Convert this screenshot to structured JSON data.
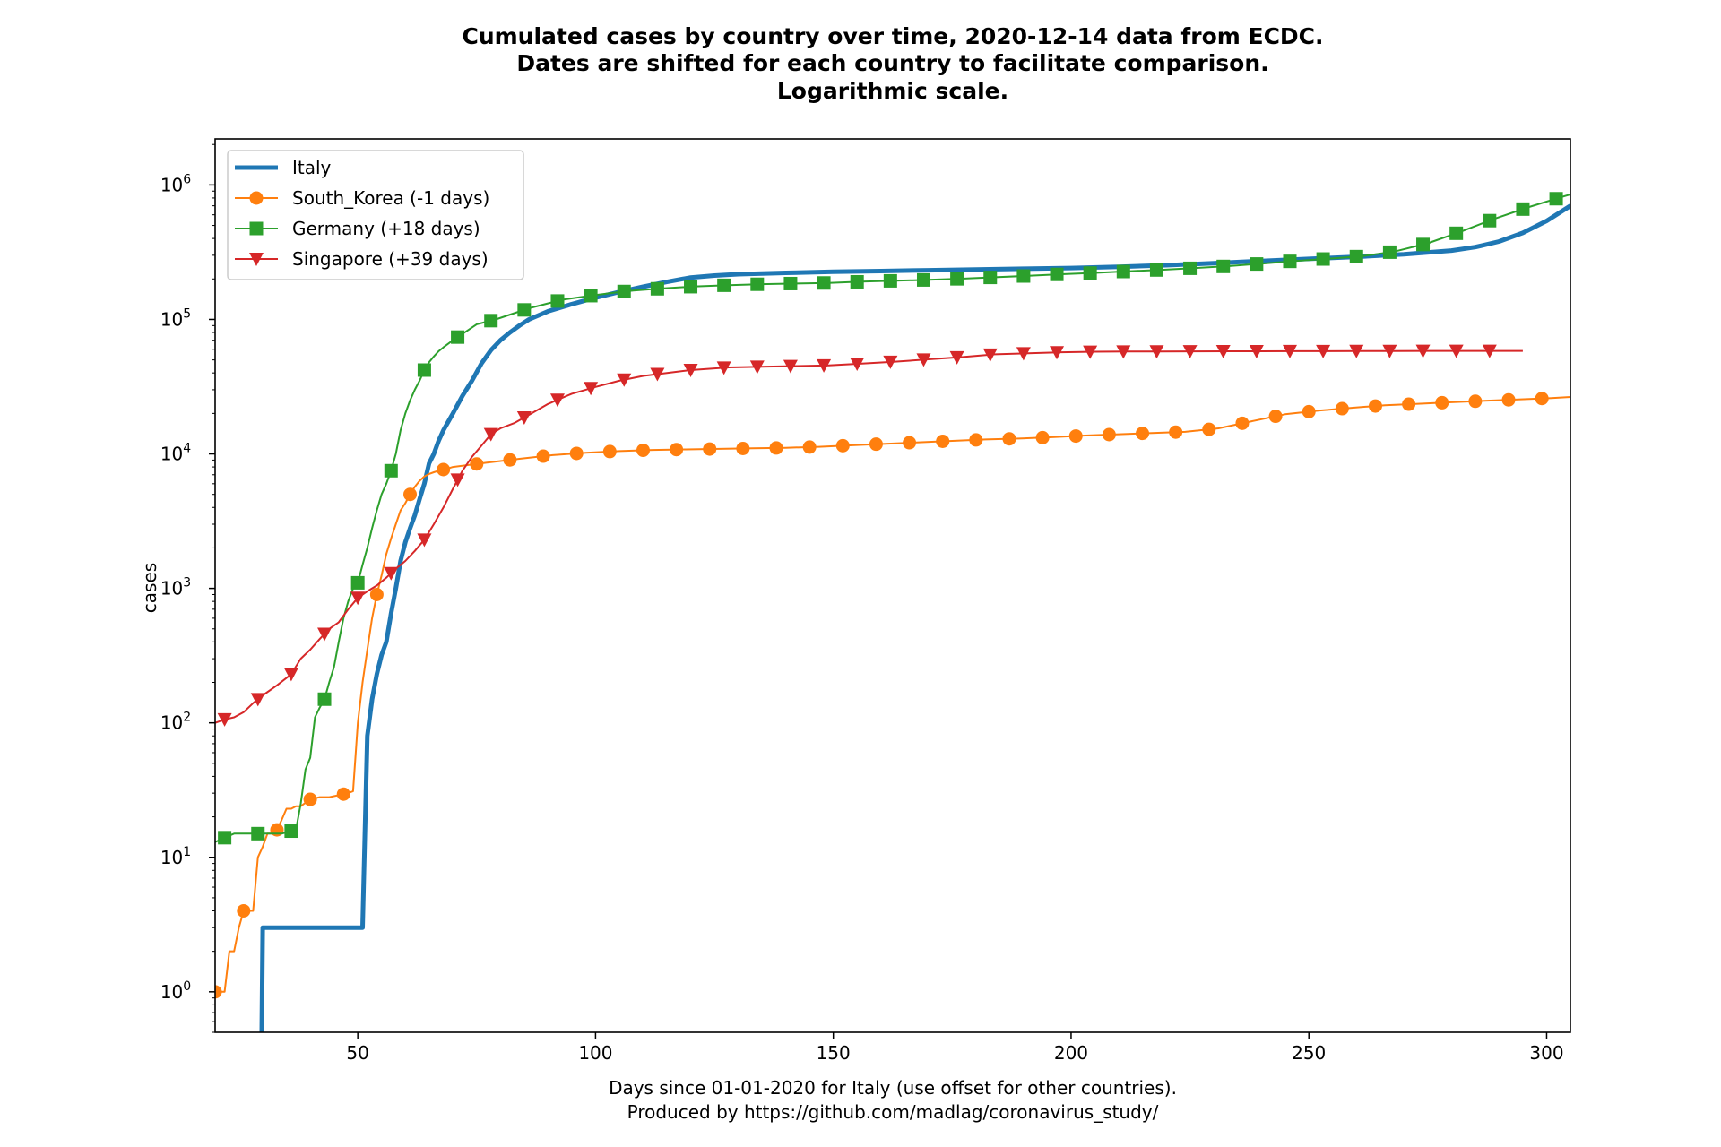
{
  "chart_data": {
    "type": "line",
    "title": [
      "Cumulated cases by country over time, 2020-12-14 data from ECDC.",
      "Dates are shifted for each country to facilitate comparison.",
      "Logarithmic scale."
    ],
    "xlabel": [
      "Days since 01-01-2020 for Italy (use offset for other countries).",
      "Produced by https://github.com/madlag/coronavirus_study/"
    ],
    "ylabel": "cases",
    "yscale": "log",
    "xlim": [
      20,
      305
    ],
    "ylim": [
      0.5,
      2200000
    ],
    "xticks": [
      50,
      100,
      150,
      200,
      250,
      300
    ],
    "yticks": [
      {
        "value": 1,
        "base": "10",
        "exp": "0"
      },
      {
        "value": 10,
        "base": "10",
        "exp": "1"
      },
      {
        "value": 100,
        "base": "10",
        "exp": "2"
      },
      {
        "value": 1000,
        "base": "10",
        "exp": "3"
      },
      {
        "value": 10000,
        "base": "10",
        "exp": "4"
      },
      {
        "value": 100000,
        "base": "10",
        "exp": "5"
      },
      {
        "value": 1000000,
        "base": "10",
        "exp": "6"
      }
    ],
    "grid": false,
    "legend_position": "top-left",
    "series": [
      {
        "name": "Italy",
        "color": "#1f77b4",
        "marker": "none",
        "line_width": 5,
        "points": [
          [
            29.8,
            0.5
          ],
          [
            30,
            3
          ],
          [
            50,
            3
          ],
          [
            51,
            3
          ],
          [
            52,
            80
          ],
          [
            53,
            150
          ],
          [
            54,
            230
          ],
          [
            55,
            320
          ],
          [
            56,
            400
          ],
          [
            57,
            650
          ],
          [
            58,
            1000
          ],
          [
            59,
            1600
          ],
          [
            60,
            2200
          ],
          [
            61,
            2800
          ],
          [
            62,
            3500
          ],
          [
            63,
            4600
          ],
          [
            64,
            6000
          ],
          [
            65,
            8500
          ],
          [
            66,
            10000
          ],
          [
            67,
            12500
          ],
          [
            68,
            15000
          ],
          [
            70,
            20000
          ],
          [
            72,
            27000
          ],
          [
            74,
            35000
          ],
          [
            76,
            47000
          ],
          [
            78,
            59000
          ],
          [
            80,
            70000
          ],
          [
            82,
            80000
          ],
          [
            84,
            90000
          ],
          [
            86,
            100000
          ],
          [
            90,
            115000
          ],
          [
            95,
            130000
          ],
          [
            100,
            145000
          ],
          [
            105,
            160000
          ],
          [
            110,
            175000
          ],
          [
            115,
            190000
          ],
          [
            120,
            205000
          ],
          [
            125,
            212000
          ],
          [
            130,
            217000
          ],
          [
            140,
            222000
          ],
          [
            150,
            226000
          ],
          [
            160,
            229000
          ],
          [
            170,
            232000
          ],
          [
            180,
            235000
          ],
          [
            190,
            238000
          ],
          [
            200,
            241000
          ],
          [
            210,
            246000
          ],
          [
            220,
            253000
          ],
          [
            230,
            262000
          ],
          [
            240,
            272000
          ],
          [
            250,
            282000
          ],
          [
            260,
            292000
          ],
          [
            270,
            305000
          ],
          [
            280,
            325000
          ],
          [
            285,
            345000
          ],
          [
            290,
            380000
          ],
          [
            295,
            440000
          ],
          [
            300,
            540000
          ],
          [
            305,
            700000
          ]
        ]
      },
      {
        "name": "South_Korea (-1 days)",
        "color": "#ff7f0e",
        "marker": "circle",
        "line_width": 2,
        "points": [
          [
            20,
            1
          ],
          [
            22,
            1
          ],
          [
            23,
            2
          ],
          [
            24,
            2
          ],
          [
            25,
            3
          ],
          [
            26,
            4
          ],
          [
            27,
            4
          ],
          [
            28,
            4
          ],
          [
            29,
            10
          ],
          [
            30,
            12
          ],
          [
            31,
            15
          ],
          [
            32,
            15
          ],
          [
            33,
            16
          ],
          [
            34,
            19
          ],
          [
            35,
            23
          ],
          [
            36,
            23
          ],
          [
            37,
            24
          ],
          [
            38,
            24
          ],
          [
            40,
            27
          ],
          [
            42,
            28
          ],
          [
            44,
            28
          ],
          [
            46,
            29
          ],
          [
            48,
            30
          ],
          [
            49,
            31
          ],
          [
            50,
            100
          ],
          [
            51,
            200
          ],
          [
            52,
            350
          ],
          [
            53,
            600
          ],
          [
            54,
            900
          ],
          [
            55,
            1250
          ],
          [
            56,
            1800
          ],
          [
            57,
            2350
          ],
          [
            58,
            3000
          ],
          [
            59,
            3800
          ],
          [
            60,
            4300
          ],
          [
            61,
            5000
          ],
          [
            62,
            5700
          ],
          [
            63,
            6300
          ],
          [
            64,
            6800
          ],
          [
            65,
            7100
          ],
          [
            66,
            7300
          ],
          [
            67,
            7500
          ],
          [
            69,
            7800
          ],
          [
            70,
            8000
          ],
          [
            77,
            8600
          ],
          [
            84,
            9200
          ],
          [
            91,
            9800
          ],
          [
            98,
            10200
          ],
          [
            105,
            10500
          ],
          [
            112,
            10700
          ],
          [
            119,
            10800
          ],
          [
            126,
            10900
          ],
          [
            133,
            11000
          ],
          [
            140,
            11100
          ],
          [
            147,
            11300
          ],
          [
            154,
            11600
          ],
          [
            161,
            11900
          ],
          [
            168,
            12200
          ],
          [
            175,
            12500
          ],
          [
            182,
            12800
          ],
          [
            189,
            13000
          ],
          [
            196,
            13300
          ],
          [
            203,
            13700
          ],
          [
            210,
            14000
          ],
          [
            217,
            14300
          ],
          [
            224,
            14600
          ],
          [
            231,
            15500
          ],
          [
            238,
            17500
          ],
          [
            245,
            19700
          ],
          [
            252,
            21000
          ],
          [
            259,
            22000
          ],
          [
            266,
            23000
          ],
          [
            273,
            23600
          ],
          [
            280,
            24200
          ],
          [
            287,
            24800
          ],
          [
            294,
            25400
          ],
          [
            301,
            26000
          ],
          [
            305,
            26500
          ]
        ]
      },
      {
        "name": "Germany (+18 days)",
        "color": "#2ca02c",
        "marker": "square",
        "line_width": 2,
        "points": [
          [
            20,
            13
          ],
          [
            22,
            14
          ],
          [
            24,
            15
          ],
          [
            30,
            15
          ],
          [
            34,
            15
          ],
          [
            37,
            16
          ],
          [
            38,
            25
          ],
          [
            39,
            45
          ],
          [
            40,
            55
          ],
          [
            41,
            110
          ],
          [
            42,
            130
          ],
          [
            43,
            150
          ],
          [
            44,
            200
          ],
          [
            45,
            260
          ],
          [
            46,
            400
          ],
          [
            47,
            600
          ],
          [
            48,
            800
          ],
          [
            49,
            1000
          ],
          [
            50,
            1100
          ],
          [
            51,
            1500
          ],
          [
            52,
            2000
          ],
          [
            53,
            2800
          ],
          [
            54,
            3800
          ],
          [
            55,
            5000
          ],
          [
            56,
            6000
          ],
          [
            57,
            7500
          ],
          [
            58,
            10000
          ],
          [
            59,
            15000
          ],
          [
            60,
            20000
          ],
          [
            61,
            25000
          ],
          [
            62,
            30000
          ],
          [
            63,
            35000
          ],
          [
            64,
            42000
          ],
          [
            65,
            48000
          ],
          [
            66,
            53000
          ],
          [
            67,
            58000
          ],
          [
            68,
            62000
          ],
          [
            70,
            70000
          ],
          [
            72,
            78000
          ],
          [
            75,
            92000
          ],
          [
            79,
            100000
          ],
          [
            86,
            121000
          ],
          [
            93,
            140000
          ],
          [
            100,
            152000
          ],
          [
            107,
            163000
          ],
          [
            114,
            170000
          ],
          [
            121,
            176000
          ],
          [
            128,
            180000
          ],
          [
            135,
            183000
          ],
          [
            142,
            185000
          ],
          [
            149,
            187000
          ],
          [
            156,
            191000
          ],
          [
            163,
            194000
          ],
          [
            170,
            197000
          ],
          [
            177,
            201000
          ],
          [
            184,
            206000
          ],
          [
            191,
            211000
          ],
          [
            198,
            217000
          ],
          [
            205,
            222000
          ],
          [
            212,
            228000
          ],
          [
            219,
            234000
          ],
          [
            226,
            241000
          ],
          [
            233,
            249000
          ],
          [
            240,
            260000
          ],
          [
            247,
            272000
          ],
          [
            254,
            283000
          ],
          [
            261,
            295000
          ],
          [
            268,
            320000
          ],
          [
            275,
            368000
          ],
          [
            282,
            450000
          ],
          [
            289,
            560000
          ],
          [
            296,
            680000
          ],
          [
            303,
            810000
          ],
          [
            305,
            850000
          ]
        ]
      },
      {
        "name": "Singapore (+39 days)",
        "color": "#d62728",
        "marker": "triangle-down",
        "line_width": 2,
        "points": [
          [
            20,
            100
          ],
          [
            22,
            106
          ],
          [
            24,
            110
          ],
          [
            26,
            120
          ],
          [
            28,
            140
          ],
          [
            30,
            160
          ],
          [
            33,
            190
          ],
          [
            36,
            230
          ],
          [
            38,
            300
          ],
          [
            40,
            350
          ],
          [
            42,
            420
          ],
          [
            44,
            500
          ],
          [
            46,
            560
          ],
          [
            48,
            700
          ],
          [
            50,
            850
          ],
          [
            52,
            950
          ],
          [
            54,
            1050
          ],
          [
            56,
            1200
          ],
          [
            58,
            1400
          ],
          [
            60,
            1600
          ],
          [
            62,
            1900
          ],
          [
            64,
            2300
          ],
          [
            66,
            3000
          ],
          [
            68,
            4000
          ],
          [
            70,
            5500
          ],
          [
            72,
            7500
          ],
          [
            74,
            9500
          ],
          [
            76,
            11500
          ],
          [
            78,
            14000
          ],
          [
            80,
            15500
          ],
          [
            83,
            17000
          ],
          [
            86,
            19500
          ],
          [
            90,
            23500
          ],
          [
            95,
            28000
          ],
          [
            100,
            31500
          ],
          [
            105,
            35000
          ],
          [
            110,
            38000
          ],
          [
            115,
            40000
          ],
          [
            120,
            42000
          ],
          [
            128,
            44000
          ],
          [
            135,
            44500
          ],
          [
            142,
            45000
          ],
          [
            149,
            45500
          ],
          [
            156,
            47000
          ],
          [
            163,
            48500
          ],
          [
            170,
            50500
          ],
          [
            177,
            52500
          ],
          [
            184,
            55000
          ],
          [
            191,
            56000
          ],
          [
            198,
            57000
          ],
          [
            205,
            57500
          ],
          [
            212,
            57700
          ],
          [
            219,
            57800
          ],
          [
            226,
            57900
          ],
          [
            233,
            58000
          ],
          [
            240,
            58000
          ],
          [
            247,
            58100
          ],
          [
            254,
            58100
          ],
          [
            261,
            58200
          ],
          [
            268,
            58200
          ],
          [
            275,
            58300
          ],
          [
            282,
            58300
          ],
          [
            289,
            58300
          ],
          [
            295,
            58300
          ]
        ]
      }
    ]
  }
}
